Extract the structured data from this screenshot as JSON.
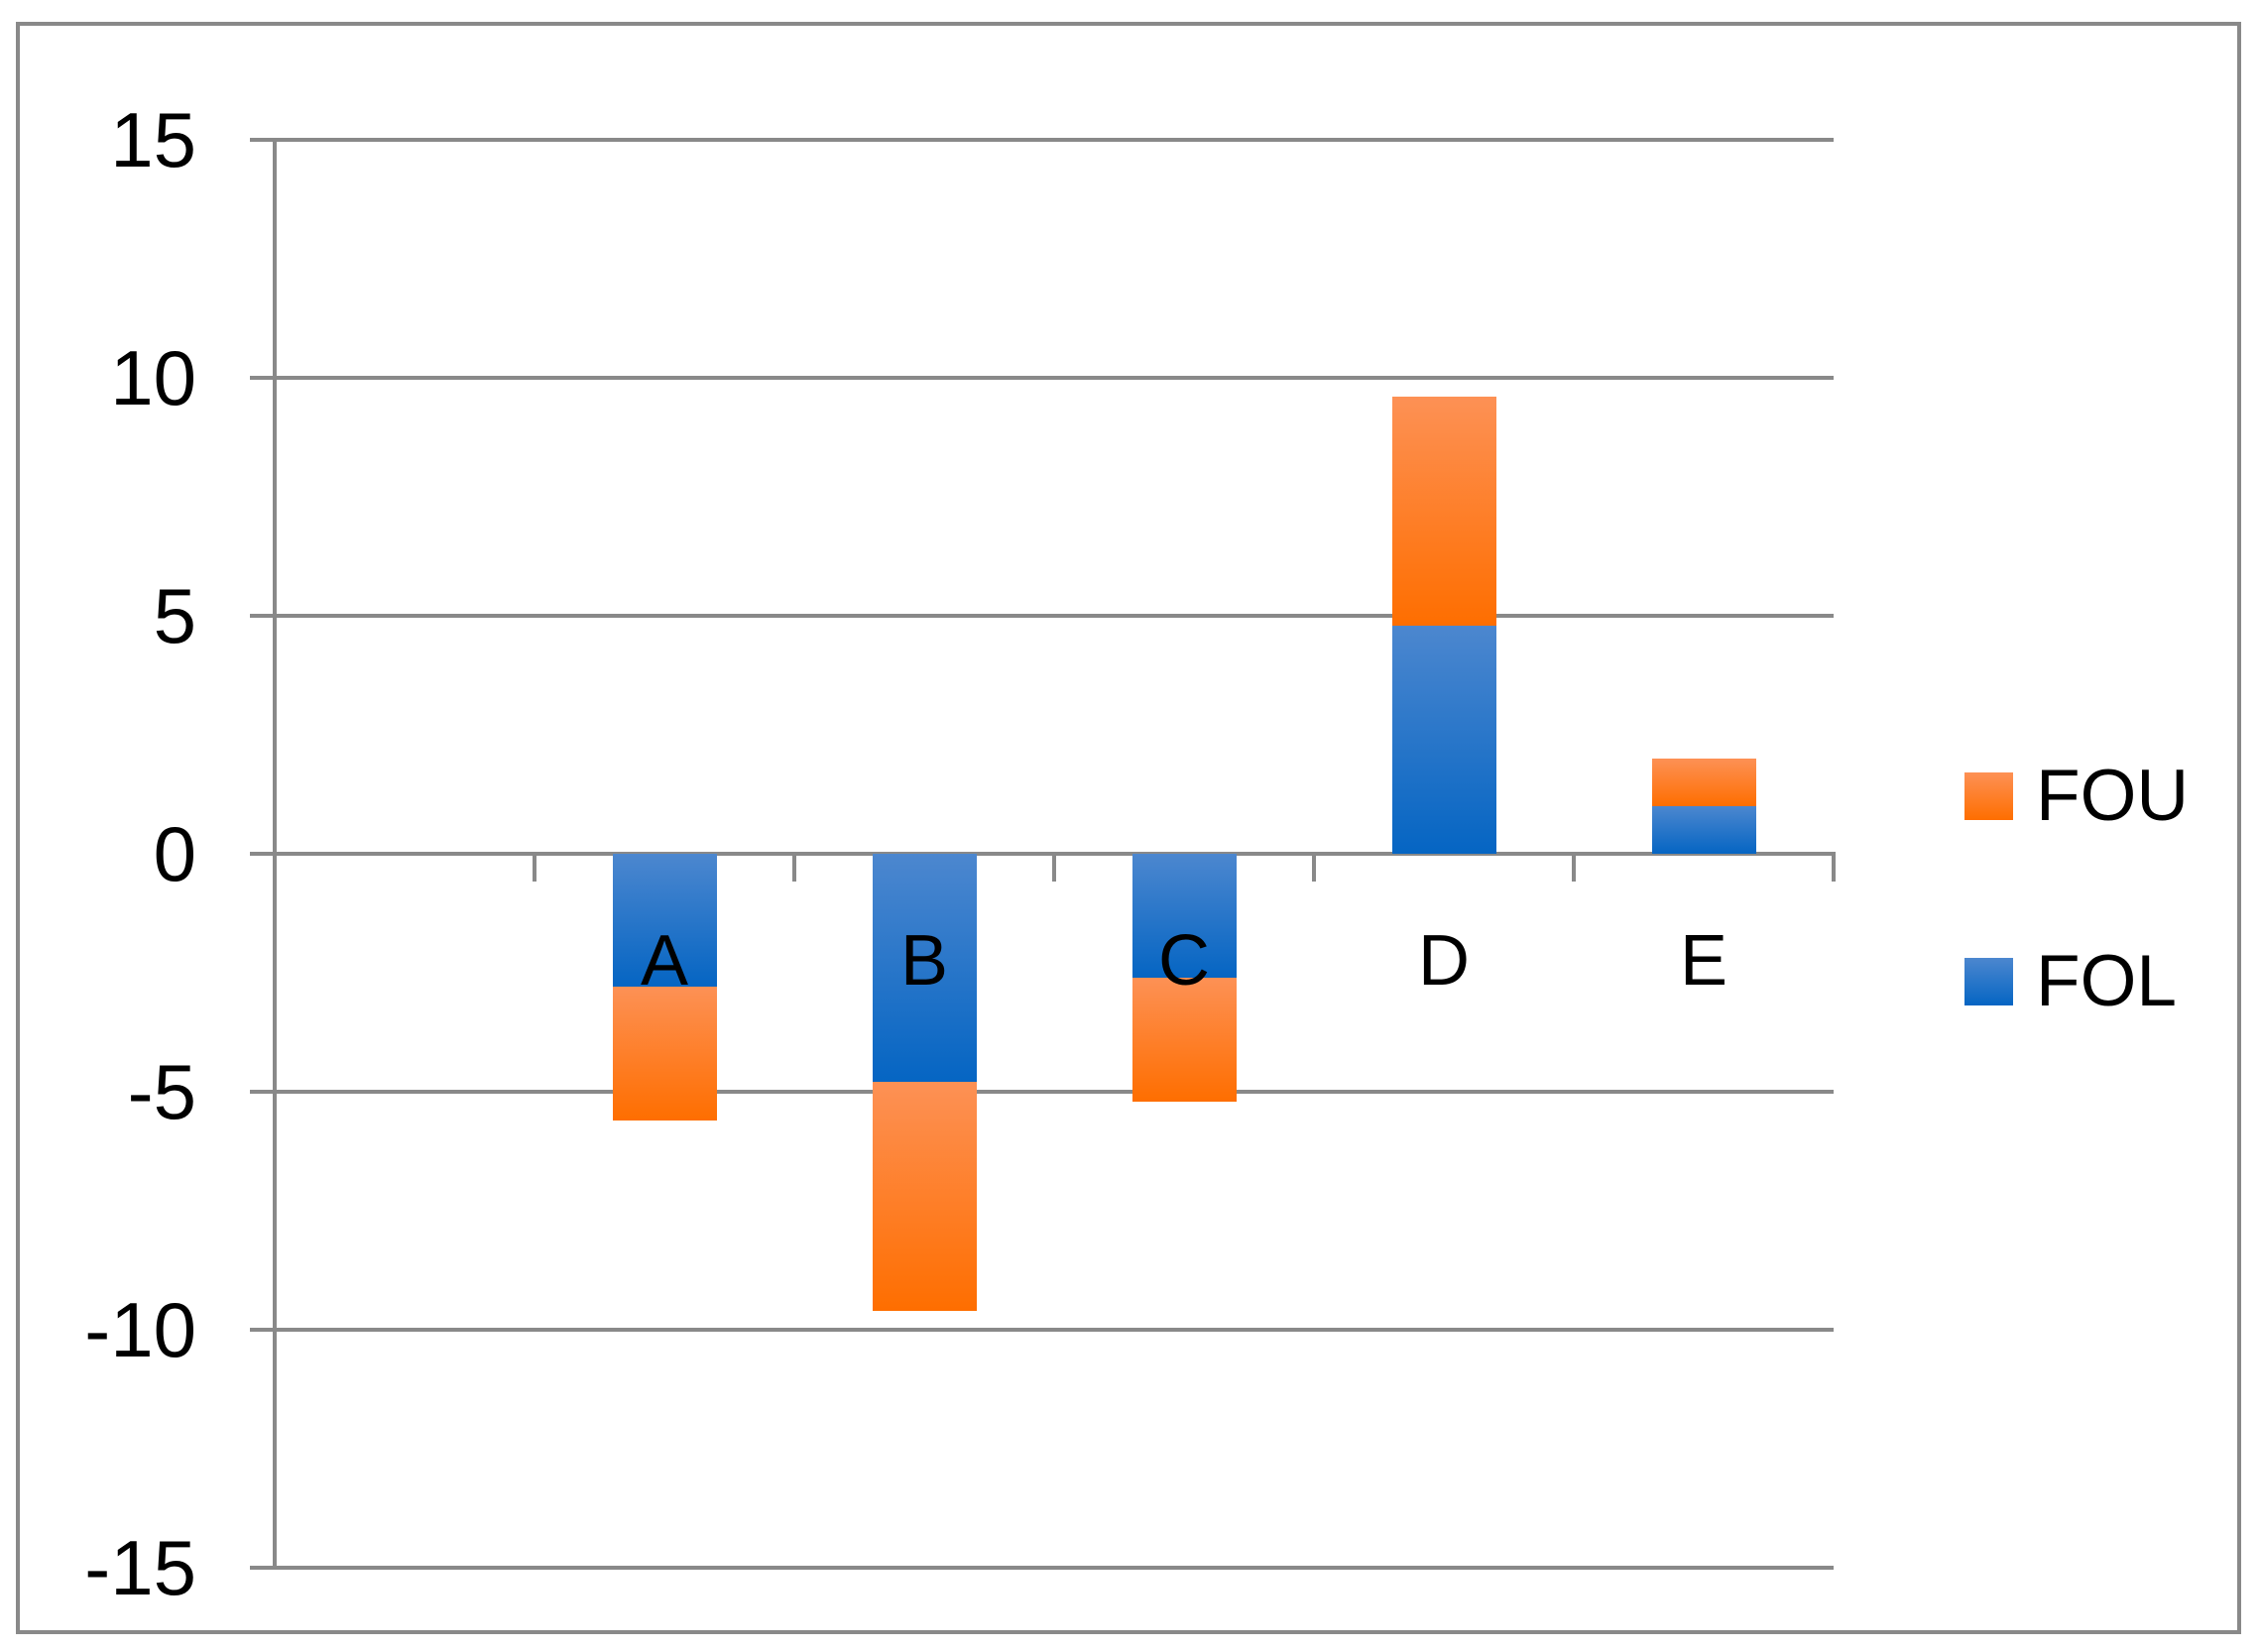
{
  "chart_data": {
    "type": "bar",
    "stacked": true,
    "title": "",
    "xlabel": "",
    "ylabel": "",
    "categories": [
      "A",
      "B",
      "C",
      "D",
      "E"
    ],
    "series": [
      {
        "name": "FOU",
        "values": [
          -2.8,
          -4.8,
          -2.6,
          4.8,
          1.0
        ],
        "color_top": "#FD9155",
        "color_bottom": "#FE6E00"
      },
      {
        "name": "FOL",
        "values": [
          -2.8,
          -4.8,
          -2.6,
          4.8,
          1.0
        ],
        "color_top": "#4C87CF",
        "color_bottom": "#0565C3"
      }
    ],
    "stack_base": "FOL",
    "ylim": [
      -15,
      15
    ],
    "yticks": [
      15,
      10,
      5,
      0,
      -5,
      -10,
      -15
    ],
    "ytick_labels": [
      "15",
      "10",
      "5",
      "0",
      "-5",
      "-10",
      "-15"
    ],
    "grid": true,
    "legend_position": "right",
    "axis_color": "#898989",
    "text_color": "#000000",
    "background_color": "#FFFFFF"
  },
  "legend": {
    "items": [
      {
        "label": "FOU"
      },
      {
        "label": "FOL"
      }
    ]
  }
}
